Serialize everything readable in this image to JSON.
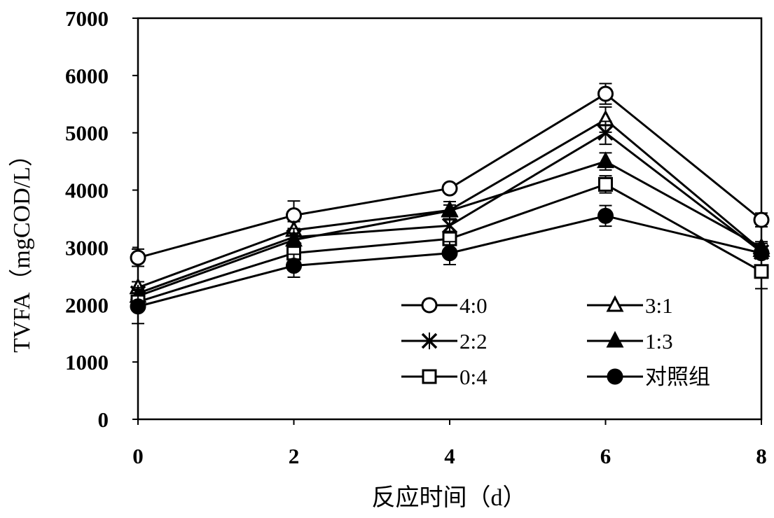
{
  "chart_data": {
    "type": "line",
    "title": "",
    "xlabel": "反应时间（d）",
    "ylabel": "TVFA（mgCOD/L）",
    "xlim": [
      0,
      8
    ],
    "ylim": [
      0,
      7000
    ],
    "x_ticks": [
      0,
      2,
      4,
      6,
      8
    ],
    "y_ticks": [
      0,
      1000,
      2000,
      3000,
      4000,
      5000,
      6000,
      7000
    ],
    "grid": false,
    "legend_position": "bottom-right",
    "x": [
      0,
      2,
      4,
      6,
      8
    ],
    "series": [
      {
        "name": "4:0",
        "marker": "open-circle",
        "values": [
          2820,
          3560,
          4030,
          5680,
          3480
        ],
        "errors": [
          150,
          250,
          0,
          180,
          120
        ]
      },
      {
        "name": "3:1",
        "marker": "open-triangle",
        "values": [
          2300,
          3300,
          3650,
          5230,
          2950
        ],
        "errors": [
          100,
          150,
          150,
          220,
          120
        ]
      },
      {
        "name": "2:2",
        "marker": "x",
        "values": [
          2200,
          3180,
          3380,
          5000,
          2920
        ],
        "errors": [
          100,
          150,
          100,
          200,
          100
        ]
      },
      {
        "name": "1:3",
        "marker": "filled-triangle",
        "values": [
          2150,
          3130,
          3640,
          4500,
          3000
        ],
        "errors": [
          100,
          120,
          100,
          150,
          100
        ]
      },
      {
        "name": "0:4",
        "marker": "open-square",
        "values": [
          2050,
          2900,
          3150,
          4100,
          2580
        ],
        "errors": [
          150,
          150,
          100,
          150,
          300
        ]
      },
      {
        "name": "对照组",
        "marker": "filled-circle",
        "values": [
          1970,
          2680,
          2900,
          3550,
          2900
        ],
        "errors": [
          300,
          200,
          200,
          180,
          100
        ]
      }
    ]
  }
}
